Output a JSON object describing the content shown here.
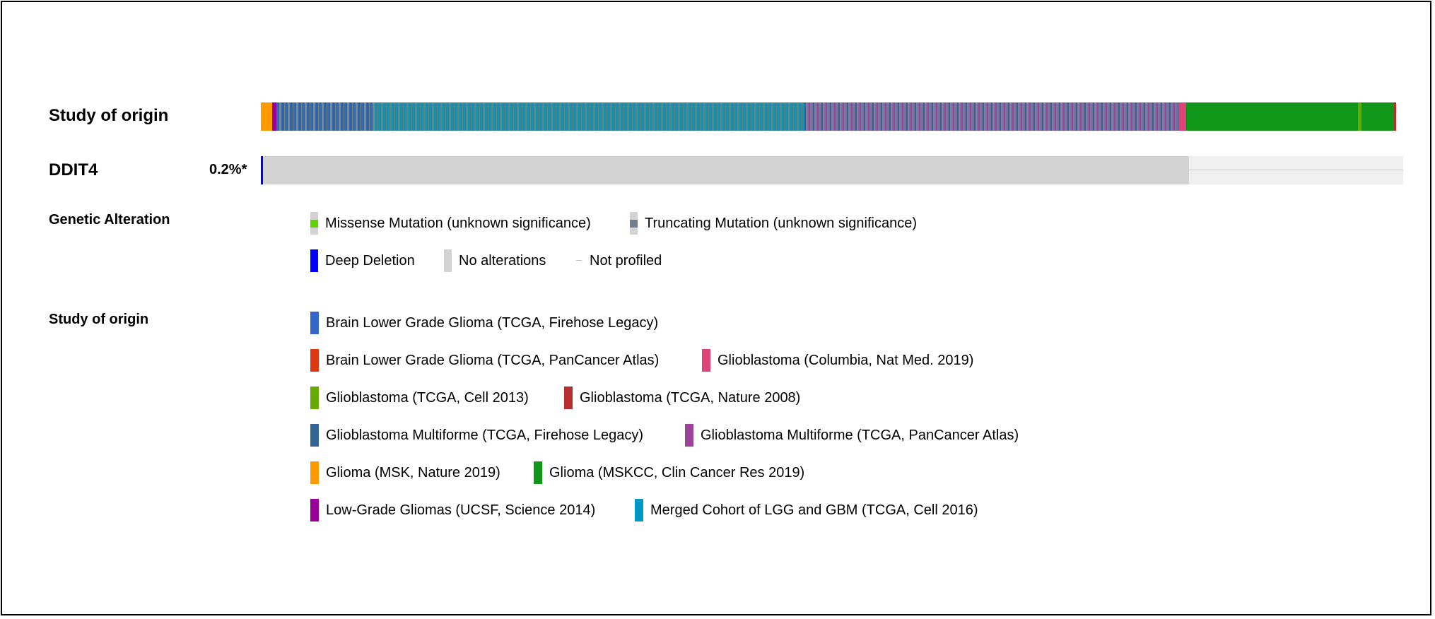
{
  "tracks": {
    "study": {
      "label": "Study of origin"
    },
    "gene": {
      "label": "DDIT4",
      "percent": "0.2%*"
    }
  },
  "colors": {
    "brain_lgg_firehose": "#3366cc",
    "brain_lgg_pancan": "#dc3912",
    "gbm_columbia": "#dd4477",
    "gbm_tcga_cell2013": "#66aa00",
    "gbm_tcga_nature2008": "#b82e2e",
    "gbm_firehose": "#316395",
    "gbm_pancan": "#994499",
    "glioma_msk": "#ff9900",
    "glioma_mskcc": "#109618",
    "lgg_ucsf": "#990099",
    "merged_lgg_gbm": "#0099c6",
    "missense": "#5dd300",
    "truncating": "#708090",
    "deep_deletion": "#0000ff",
    "no_alteration": "#d3d3d3",
    "not_profiled_bg": "#f0f0f0"
  },
  "oncoprint": {
    "study_segments": [
      {
        "study": "glioma_msk",
        "fraction": 0.0096
      },
      {
        "study": "lgg_ucsf",
        "fraction": 0.0042
      },
      {
        "study": "mixed_firehose_merged",
        "fraction": 0.086
      },
      {
        "study": "mixed_pancan_merged",
        "fraction": 0.376
      },
      {
        "study": "mixed_gbm",
        "fraction": 0.3276
      },
      {
        "study": "gbm_columbia",
        "fraction": 0.0066
      },
      {
        "study": "glioma_mskcc",
        "fraction": 0.1502
      },
      {
        "study": "gbm_tcga_cell2013",
        "fraction": 0.003
      },
      {
        "study": "glioma_mskcc",
        "fraction": 0.0288
      },
      {
        "study": "gbm_tcga_nature2008",
        "fraction": 0.0018
      }
    ],
    "gene_profiled_fraction": 0.8125,
    "deep_deletion_fraction": 0.002
  },
  "legend": {
    "genetic_alteration": {
      "title": "Genetic Alteration",
      "items": [
        {
          "name": "missense",
          "label": "Missense Mutation (unknown significance)"
        },
        {
          "name": "truncating",
          "label": "Truncating Mutation (unknown significance)"
        },
        {
          "name": "deep-deletion",
          "label": "Deep Deletion"
        },
        {
          "name": "no-alterations",
          "label": "No alterations"
        },
        {
          "name": "not-profiled",
          "label": "Not profiled"
        }
      ]
    },
    "study_of_origin": {
      "title": "Study of origin",
      "items": [
        {
          "color_key": "brain_lgg_firehose",
          "label": "Brain Lower Grade Glioma (TCGA, Firehose Legacy)"
        },
        {
          "color_key": "brain_lgg_pancan",
          "label": "Brain Lower Grade Glioma (TCGA, PanCancer Atlas)"
        },
        {
          "color_key": "gbm_columbia",
          "label": "Glioblastoma (Columbia, Nat Med. 2019)"
        },
        {
          "color_key": "gbm_tcga_cell2013",
          "label": "Glioblastoma (TCGA, Cell 2013)"
        },
        {
          "color_key": "gbm_tcga_nature2008",
          "label": "Glioblastoma (TCGA, Nature 2008)"
        },
        {
          "color_key": "gbm_firehose",
          "label": "Glioblastoma Multiforme (TCGA, Firehose Legacy)"
        },
        {
          "color_key": "gbm_pancan",
          "label": "Glioblastoma Multiforme (TCGA, PanCancer Atlas)"
        },
        {
          "color_key": "glioma_msk",
          "label": "Glioma (MSK, Nature 2019)"
        },
        {
          "color_key": "glioma_mskcc",
          "label": "Glioma (MSKCC, Clin Cancer Res 2019)"
        },
        {
          "color_key": "lgg_ucsf",
          "label": "Low-Grade Gliomas (UCSF, Science 2014)"
        },
        {
          "color_key": "merged_lgg_gbm",
          "label": "Merged Cohort of LGG and GBM (TCGA, Cell 2016)"
        }
      ]
    }
  }
}
